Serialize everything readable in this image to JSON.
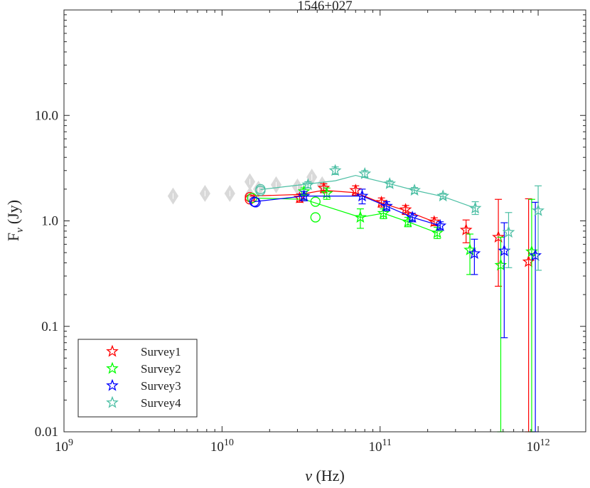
{
  "chart_data": {
    "type": "scatter",
    "title": "1546+027",
    "xlabel_symbol": "ν",
    "xlabel_unit": "(Hz)",
    "ylabel_base": "F",
    "ylabel_sub": "ν",
    "ylabel_unit": "(Jy)",
    "xscale": "log",
    "yscale": "log",
    "xlim": [
      1000000000.0,
      2000000000000.0
    ],
    "ylim": [
      0.01,
      100
    ],
    "x_ticks": [
      {
        "value": 1000000000.0,
        "base": "10",
        "exp": "9"
      },
      {
        "value": 10000000000.0,
        "base": "10",
        "exp": "10"
      },
      {
        "value": 100000000000.0,
        "base": "10",
        "exp": "11"
      },
      {
        "value": 1000000000000.0,
        "base": "10",
        "exp": "12"
      }
    ],
    "y_ticks": [
      {
        "value": 0.01,
        "label": "0.01"
      },
      {
        "value": 0.1,
        "label": "0.1"
      },
      {
        "value": 1,
        "label": "1.0"
      },
      {
        "value": 10,
        "label": "10.0"
      }
    ],
    "legend_position": "bottom-left",
    "archival": {
      "name": "archival",
      "color": "#d9d9d9",
      "points": [
        {
          "x": 4900000000.0,
          "y": 1.72
        },
        {
          "x": 7800000000.0,
          "y": 1.82
        },
        {
          "x": 11200000000.0,
          "y": 1.82
        },
        {
          "x": 15000000000.0,
          "y": 1.75
        },
        {
          "x": 15000000000.0,
          "y": 2.35
        },
        {
          "x": 17000000000.0,
          "y": 2.0
        },
        {
          "x": 22000000000.0,
          "y": 2.2
        },
        {
          "x": 30000000000.0,
          "y": 2.1
        },
        {
          "x": 37000000000.0,
          "y": 2.6
        },
        {
          "x": 43000000000.0,
          "y": 2.2
        }
      ]
    },
    "series": [
      {
        "name": "Survey1",
        "color": "#ff0000",
        "line": [
          [
            15000000000.0,
            1.72
          ],
          [
            31000000000.0,
            1.78
          ],
          [
            44000000000.0,
            1.95
          ],
          [
            70000000000.0,
            1.85
          ],
          [
            102000000000.0,
            1.48
          ],
          [
            145000000000.0,
            1.25
          ],
          [
            220000000000.0,
            0.98
          ]
        ],
        "stars": [
          {
            "x": 31000000000.0,
            "y": 1.65,
            "lo": 1.5,
            "hi": 1.8
          },
          {
            "x": 44000000000.0,
            "y": 2.05,
            "lo": 1.85,
            "hi": 2.25
          },
          {
            "x": 70000000000.0,
            "y": 1.95,
            "lo": 1.75,
            "hi": 2.15
          },
          {
            "x": 102000000000.0,
            "y": 1.5,
            "lo": 1.35,
            "hi": 1.65
          },
          {
            "x": 145000000000.0,
            "y": 1.28,
            "lo": 1.15,
            "hi": 1.4
          },
          {
            "x": 220000000000.0,
            "y": 0.98,
            "lo": 0.9,
            "hi": 1.07
          },
          {
            "x": 350000000000.0,
            "y": 0.82,
            "lo": 0.62,
            "hi": 1.02
          },
          {
            "x": 560000000000.0,
            "y": 0.7,
            "lo": 0.24,
            "hi": 1.6
          },
          {
            "x": 870000000000.0,
            "y": 0.41,
            "lo": 0.01,
            "hi": 1.62
          }
        ],
        "circles": [
          {
            "x": 15000000000.0,
            "y": 1.68
          },
          {
            "x": 15000000000.0,
            "y": 1.6
          }
        ]
      },
      {
        "name": "Survey2",
        "color": "#00ff00",
        "line": [
          [
            15500000000.0,
            1.65
          ],
          [
            33000000000.0,
            1.6
          ],
          [
            75000000000.0,
            1.08
          ],
          [
            105000000000.0,
            1.18
          ],
          [
            150000000000.0,
            0.98
          ],
          [
            230000000000.0,
            0.77
          ]
        ],
        "stars": [
          {
            "x": 33000000000.0,
            "y": 1.9,
            "lo": 1.75,
            "hi": 2.05
          },
          {
            "x": 46000000000.0,
            "y": 1.82,
            "lo": 1.6,
            "hi": 2.05
          },
          {
            "x": 75000000000.0,
            "y": 1.08,
            "lo": 0.85,
            "hi": 1.3
          },
          {
            "x": 105000000000.0,
            "y": 1.18,
            "lo": 1.05,
            "hi": 1.3
          },
          {
            "x": 150000000000.0,
            "y": 0.98,
            "lo": 0.88,
            "hi": 1.08
          },
          {
            "x": 230000000000.0,
            "y": 0.77,
            "lo": 0.68,
            "hi": 0.87
          },
          {
            "x": 370000000000.0,
            "y": 0.53,
            "lo": 0.31,
            "hi": 0.75
          },
          {
            "x": 580000000000.0,
            "y": 0.38,
            "lo": 0.01,
            "hi": 0.7
          },
          {
            "x": 910000000000.0,
            "y": 0.51,
            "lo": 0.01,
            "hi": 1.6
          }
        ],
        "circles": [
          {
            "x": 15500000000.0,
            "y": 1.65
          },
          {
            "x": 39000000000.0,
            "y": 1.52
          },
          {
            "x": 39000000000.0,
            "y": 1.08
          }
        ]
      },
      {
        "name": "Survey3",
        "color": "#0000ff",
        "line": [
          [
            16000000000.0,
            1.52
          ],
          [
            33000000000.0,
            1.72
          ],
          [
            77000000000.0,
            1.72
          ],
          [
            110000000000.0,
            1.38
          ],
          [
            160000000000.0,
            1.08
          ],
          [
            240000000000.0,
            0.9
          ]
        ],
        "stars": [
          {
            "x": 33000000000.0,
            "y": 1.72,
            "lo": 1.55,
            "hi": 1.9
          },
          {
            "x": 77000000000.0,
            "y": 1.72,
            "lo": 1.45,
            "hi": 2.0
          },
          {
            "x": 110000000000.0,
            "y": 1.38,
            "lo": 1.25,
            "hi": 1.52
          },
          {
            "x": 160000000000.0,
            "y": 1.08,
            "lo": 0.98,
            "hi": 1.18
          },
          {
            "x": 240000000000.0,
            "y": 0.9,
            "lo": 0.82,
            "hi": 0.98
          },
          {
            "x": 395000000000.0,
            "y": 0.49,
            "lo": 0.31,
            "hi": 0.67
          },
          {
            "x": 610000000000.0,
            "y": 0.52,
            "lo": 0.078,
            "hi": 0.96
          },
          {
            "x": 960000000000.0,
            "y": 0.47,
            "lo": 0.01,
            "hi": 1.5
          }
        ],
        "circles": [
          {
            "x": 16000000000.0,
            "y": 1.52
          },
          {
            "x": 16300000000.0,
            "y": 1.5
          }
        ]
      },
      {
        "name": "Survey4",
        "color": "#4cbfa4",
        "line": [
          [
            17500000000.0,
            1.98
          ],
          [
            52000000000.0,
            2.4
          ],
          [
            70000000000.0,
            2.7
          ],
          [
            115000000000.0,
            2.25
          ],
          [
            165000000000.0,
            1.95
          ],
          [
            250000000000.0,
            1.7
          ],
          [
            400000000000.0,
            1.32
          ]
        ],
        "stars": [
          {
            "x": 35000000000.0,
            "y": 2.2,
            "lo": 2.05,
            "hi": 2.35
          },
          {
            "x": 52000000000.0,
            "y": 3.0,
            "lo": 2.75,
            "hi": 3.25
          },
          {
            "x": 80000000000.0,
            "y": 2.8,
            "lo": 2.6,
            "hi": 3.0
          },
          {
            "x": 115000000000.0,
            "y": 2.25,
            "lo": 2.1,
            "hi": 2.4
          },
          {
            "x": 165000000000.0,
            "y": 1.95,
            "lo": 1.83,
            "hi": 2.07
          },
          {
            "x": 250000000000.0,
            "y": 1.72,
            "lo": 1.62,
            "hi": 1.82
          },
          {
            "x": 400000000000.0,
            "y": 1.32,
            "lo": 1.15,
            "hi": 1.52
          },
          {
            "x": 650000000000.0,
            "y": 0.78,
            "lo": 0.36,
            "hi": 1.2
          },
          {
            "x": 1000000000000.0,
            "y": 1.25,
            "lo": 0.34,
            "hi": 2.15
          }
        ],
        "circles": [
          {
            "x": 17500000000.0,
            "y": 2.0
          },
          {
            "x": 17500000000.0,
            "y": 1.93
          }
        ]
      }
    ]
  }
}
